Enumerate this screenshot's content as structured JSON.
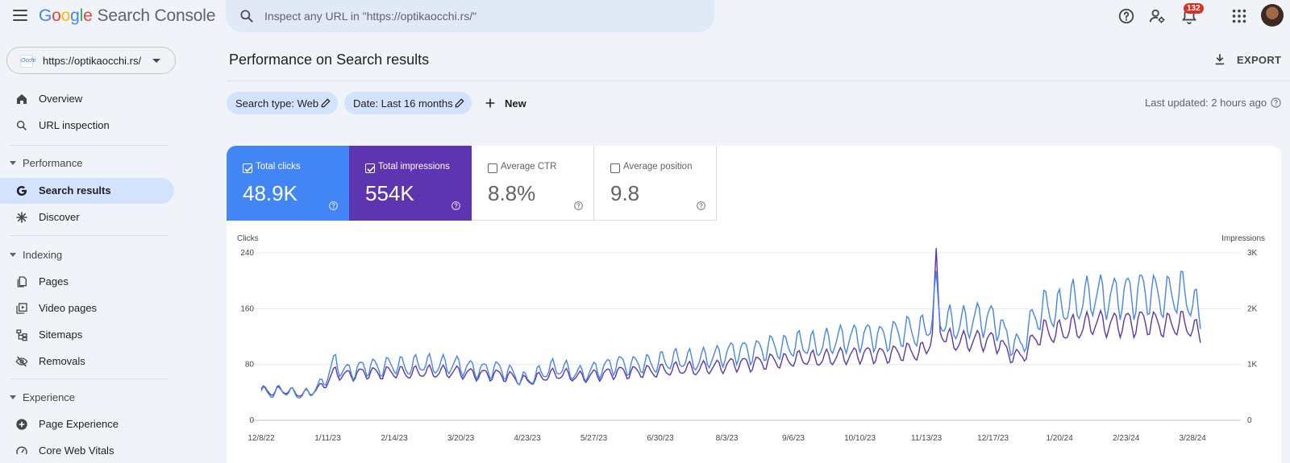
{
  "app": {
    "logo_letters": [
      "G",
      "o",
      "o",
      "g",
      "l",
      "e"
    ],
    "product": "Search Console"
  },
  "search": {
    "placeholder": "Inspect any URL in \"https://optikaocchi.rs/\""
  },
  "header": {
    "notification_count": "132"
  },
  "property": {
    "label": "https://optikaocchi.rs/",
    "favicon_text": "Occhi"
  },
  "sidebar": {
    "top_items": [
      {
        "label": "Overview",
        "icon": "home-icon"
      },
      {
        "label": "URL inspection",
        "icon": "search-icon"
      }
    ],
    "sections": [
      {
        "label": "Performance",
        "items": [
          {
            "label": "Search results",
            "icon": "google-g-icon",
            "active": true
          },
          {
            "label": "Discover",
            "icon": "asterisk-icon"
          }
        ]
      },
      {
        "label": "Indexing",
        "items": [
          {
            "label": "Pages",
            "icon": "pages-icon"
          },
          {
            "label": "Video pages",
            "icon": "video-pages-icon"
          },
          {
            "label": "Sitemaps",
            "icon": "sitemap-icon"
          },
          {
            "label": "Removals",
            "icon": "eye-off-icon"
          }
        ]
      },
      {
        "label": "Experience",
        "items": [
          {
            "label": "Page Experience",
            "icon": "page-experience-icon"
          },
          {
            "label": "Core Web Vitals",
            "icon": "gauge-icon"
          }
        ]
      }
    ]
  },
  "main": {
    "title": "Performance on Search results",
    "export_label": "EXPORT",
    "filters": [
      {
        "label": "Search type: Web"
      },
      {
        "label": "Date: Last 16 months"
      }
    ],
    "new_label": "New",
    "last_updated": "Last updated: 2 hours ago"
  },
  "metrics": [
    {
      "label": "Total clicks",
      "value": "48.9K",
      "checked": true
    },
    {
      "label": "Total impressions",
      "value": "554K",
      "checked": true
    },
    {
      "label": "Average CTR",
      "value": "8.8%",
      "checked": false
    },
    {
      "label": "Average position",
      "value": "9.8",
      "checked": false
    }
  ],
  "colors": {
    "clicks": "#4285f4",
    "impressions": "#5e35b1",
    "active_nav": "#d3e3fd"
  },
  "chart_data": {
    "type": "line",
    "left_axis": {
      "label": "Clicks",
      "ticks": [
        0,
        80,
        160,
        240
      ],
      "range": [
        0,
        240
      ]
    },
    "right_axis": {
      "label": "Impressions",
      "tick_labels": [
        "0",
        "1K",
        "2K",
        "3K"
      ],
      "ticks": [
        0,
        1000,
        2000,
        3000
      ],
      "range": [
        0,
        3000
      ]
    },
    "x_tick_labels": [
      "12/8/22",
      "1/11/23",
      "2/14/23",
      "3/20/23",
      "4/23/23",
      "5/27/23",
      "6/30/23",
      "8/3/23",
      "9/6/23",
      "10/10/23",
      "11/13/23",
      "12/17/23",
      "1/20/24",
      "2/23/24",
      "3/28/24"
    ],
    "x_ticks_days": [
      0,
      34,
      68,
      102,
      136,
      170,
      204,
      238,
      272,
      306,
      340,
      374,
      408,
      442,
      476
    ],
    "total_days": 485,
    "grid": true,
    "series": [
      {
        "name": "Clicks",
        "axis": "left",
        "color": "#4285f4",
        "points": [
          [
            0,
            42
          ],
          [
            5,
            38
          ],
          [
            10,
            44
          ],
          [
            15,
            40
          ],
          [
            20,
            36
          ],
          [
            25,
            40
          ],
          [
            30,
            50
          ],
          [
            34,
            65
          ],
          [
            38,
            85
          ],
          [
            42,
            70
          ],
          [
            48,
            72
          ],
          [
            55,
            78
          ],
          [
            60,
            75
          ],
          [
            68,
            80
          ],
          [
            75,
            76
          ],
          [
            82,
            82
          ],
          [
            90,
            78
          ],
          [
            95,
            80
          ],
          [
            102,
            78
          ],
          [
            108,
            74
          ],
          [
            114,
            72
          ],
          [
            120,
            74
          ],
          [
            126,
            70
          ],
          [
            131,
            62
          ],
          [
            136,
            58
          ],
          [
            140,
            64
          ],
          [
            146,
            72
          ],
          [
            152,
            76
          ],
          [
            158,
            70
          ],
          [
            164,
            66
          ],
          [
            170,
            72
          ],
          [
            176,
            76
          ],
          [
            182,
            82
          ],
          [
            188,
            78
          ],
          [
            194,
            82
          ],
          [
            200,
            80
          ],
          [
            204,
            84
          ],
          [
            210,
            86
          ],
          [
            216,
            88
          ],
          [
            222,
            84
          ],
          [
            228,
            90
          ],
          [
            234,
            92
          ],
          [
            238,
            96
          ],
          [
            244,
            100
          ],
          [
            250,
            98
          ],
          [
            256,
            102
          ],
          [
            262,
            106
          ],
          [
            268,
            104
          ],
          [
            272,
            108
          ],
          [
            278,
            110
          ],
          [
            284,
            106
          ],
          [
            290,
            112
          ],
          [
            296,
            116
          ],
          [
            302,
            118
          ],
          [
            306,
            120
          ],
          [
            312,
            122
          ],
          [
            318,
            118
          ],
          [
            324,
            124
          ],
          [
            330,
            128
          ],
          [
            336,
            126
          ],
          [
            340,
            132
          ],
          [
            343,
            150
          ],
          [
            345,
            180
          ],
          [
            347,
            150
          ],
          [
            350,
            140
          ],
          [
            356,
            136
          ],
          [
            362,
            142
          ],
          [
            368,
            146
          ],
          [
            374,
            144
          ],
          [
            378,
            138
          ],
          [
            380,
            120
          ],
          [
            384,
            112
          ],
          [
            388,
            105
          ],
          [
            392,
            130
          ],
          [
            396,
            150
          ],
          [
            400,
            160
          ],
          [
            406,
            156
          ],
          [
            410,
            162
          ],
          [
            414,
            170
          ],
          [
            418,
            168
          ],
          [
            422,
            174
          ],
          [
            426,
            180
          ],
          [
            432,
            176
          ],
          [
            438,
            178
          ],
          [
            442,
            182
          ],
          [
            446,
            178
          ],
          [
            450,
            186
          ],
          [
            456,
            180
          ],
          [
            462,
            176
          ],
          [
            466,
            180
          ],
          [
            470,
            184
          ],
          [
            476,
            170
          ],
          [
            480,
            145
          ]
        ]
      },
      {
        "name": "Impressions",
        "axis": "right",
        "color": "#5e35b1",
        "points": [
          [
            0,
            560
          ],
          [
            5,
            500
          ],
          [
            10,
            540
          ],
          [
            15,
            520
          ],
          [
            20,
            470
          ],
          [
            25,
            500
          ],
          [
            30,
            580
          ],
          [
            34,
            700
          ],
          [
            38,
            880
          ],
          [
            42,
            800
          ],
          [
            48,
            830
          ],
          [
            55,
            860
          ],
          [
            60,
            840
          ],
          [
            68,
            870
          ],
          [
            75,
            840
          ],
          [
            82,
            870
          ],
          [
            90,
            860
          ],
          [
            95,
            870
          ],
          [
            102,
            860
          ],
          [
            108,
            830
          ],
          [
            114,
            820
          ],
          [
            120,
            820
          ],
          [
            126,
            790
          ],
          [
            131,
            740
          ],
          [
            136,
            700
          ],
          [
            140,
            740
          ],
          [
            146,
            800
          ],
          [
            152,
            830
          ],
          [
            158,
            800
          ],
          [
            164,
            770
          ],
          [
            170,
            810
          ],
          [
            176,
            830
          ],
          [
            182,
            870
          ],
          [
            188,
            860
          ],
          [
            194,
            880
          ],
          [
            200,
            870
          ],
          [
            204,
            890
          ],
          [
            210,
            910
          ],
          [
            216,
            930
          ],
          [
            222,
            910
          ],
          [
            228,
            950
          ],
          [
            234,
            960
          ],
          [
            238,
            990
          ],
          [
            244,
            1020
          ],
          [
            250,
            1010
          ],
          [
            256,
            1040
          ],
          [
            262,
            1070
          ],
          [
            268,
            1060
          ],
          [
            272,
            1090
          ],
          [
            278,
            1110
          ],
          [
            284,
            1090
          ],
          [
            290,
            1120
          ],
          [
            296,
            1150
          ],
          [
            302,
            1160
          ],
          [
            306,
            1180
          ],
          [
            312,
            1190
          ],
          [
            318,
            1170
          ],
          [
            324,
            1200
          ],
          [
            330,
            1230
          ],
          [
            336,
            1220
          ],
          [
            340,
            1260
          ],
          [
            343,
            1600
          ],
          [
            345,
            2700
          ],
          [
            347,
            1700
          ],
          [
            350,
            1450
          ],
          [
            356,
            1400
          ],
          [
            362,
            1420
          ],
          [
            368,
            1440
          ],
          [
            374,
            1420
          ],
          [
            378,
            1380
          ],
          [
            380,
            1250
          ],
          [
            384,
            1180
          ],
          [
            388,
            1120
          ],
          [
            392,
            1300
          ],
          [
            396,
            1480
          ],
          [
            400,
            1600
          ],
          [
            406,
            1560
          ],
          [
            410,
            1600
          ],
          [
            414,
            1660
          ],
          [
            418,
            1640
          ],
          [
            422,
            1700
          ],
          [
            426,
            1760
          ],
          [
            432,
            1720
          ],
          [
            438,
            1730
          ],
          [
            442,
            1760
          ],
          [
            446,
            1730
          ],
          [
            450,
            1780
          ],
          [
            456,
            1740
          ],
          [
            462,
            1700
          ],
          [
            466,
            1720
          ],
          [
            470,
            1740
          ],
          [
            476,
            1660
          ],
          [
            480,
            1500
          ]
        ]
      }
    ]
  }
}
